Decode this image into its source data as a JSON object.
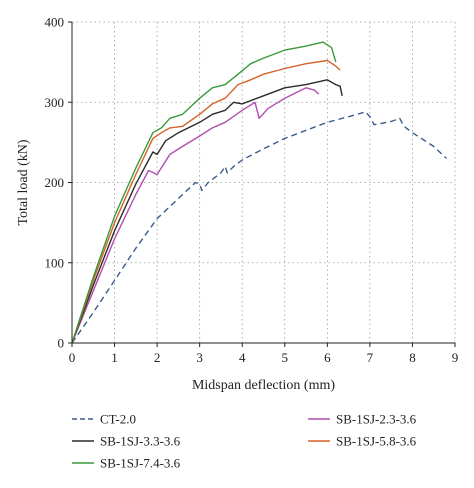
{
  "chart_data": {
    "type": "line",
    "title": "",
    "xlabel": "Midspan deflection (mm)",
    "ylabel": "Total load (kN)",
    "xlim": [
      0,
      9
    ],
    "ylim": [
      0,
      400
    ],
    "xticks": [
      0,
      1,
      2,
      3,
      4,
      5,
      6,
      7,
      8,
      9
    ],
    "yticks": [
      0,
      100,
      200,
      300,
      400
    ],
    "grid": true,
    "legend_position": "bottom",
    "series": [
      {
        "name": "CT-2.0",
        "color": "#3b5b8f",
        "dash": "dashed",
        "x": [
          0,
          0.5,
          1.0,
          1.5,
          2.0,
          2.5,
          2.9,
          3.0,
          3.05,
          3.2,
          3.5,
          3.6,
          3.65,
          3.8,
          4.0,
          4.5,
          5.0,
          5.5,
          6.0,
          6.5,
          6.9,
          7.0,
          7.1,
          7.5,
          7.7,
          7.8,
          8.0,
          8.5,
          8.8
        ],
        "y": [
          0,
          38,
          78,
          118,
          155,
          180,
          200,
          198,
          190,
          200,
          212,
          220,
          212,
          220,
          228,
          242,
          255,
          265,
          275,
          282,
          288,
          282,
          272,
          276,
          280,
          270,
          262,
          245,
          230
        ]
      },
      {
        "name": "SB-1SJ-2.3-3.6",
        "color": "#b14fae",
        "dash": "solid",
        "x": [
          0,
          0.5,
          1.0,
          1.5,
          1.8,
          2.0,
          2.3,
          2.6,
          3.0,
          3.3,
          3.6,
          4.0,
          4.3,
          4.4,
          4.6,
          5.0,
          5.5,
          5.7,
          5.8
        ],
        "y": [
          0,
          65,
          130,
          185,
          215,
          210,
          235,
          245,
          258,
          268,
          275,
          290,
          300,
          280,
          292,
          305,
          318,
          315,
          310
        ]
      },
      {
        "name": "SB-1SJ-3.3-3.6",
        "color": "#2b2b2b",
        "dash": "solid",
        "x": [
          0,
          0.5,
          1.0,
          1.5,
          1.9,
          2.0,
          2.2,
          2.5,
          3.0,
          3.3,
          3.6,
          3.8,
          4.0,
          4.5,
          5.0,
          5.5,
          6.0,
          6.2,
          6.3,
          6.35
        ],
        "y": [
          0,
          72,
          140,
          198,
          238,
          235,
          252,
          262,
          275,
          285,
          290,
          300,
          298,
          308,
          318,
          322,
          328,
          322,
          320,
          308
        ]
      },
      {
        "name": "SB-1SJ-5.8-3.6",
        "color": "#d4622a",
        "dash": "solid",
        "x": [
          0,
          0.5,
          1.0,
          1.5,
          1.9,
          2.1,
          2.3,
          2.6,
          3.0,
          3.3,
          3.6,
          3.9,
          4.2,
          4.5,
          5.0,
          5.5,
          6.0,
          6.2,
          6.3
        ],
        "y": [
          0,
          78,
          150,
          210,
          255,
          262,
          268,
          270,
          285,
          298,
          305,
          322,
          328,
          335,
          342,
          348,
          352,
          345,
          340
        ]
      },
      {
        "name": "SB-1SJ-7.4-3.6",
        "color": "#3a9a3a",
        "dash": "solid",
        "x": [
          0,
          0.5,
          1.0,
          1.5,
          1.9,
          2.1,
          2.3,
          2.6,
          3.0,
          3.3,
          3.6,
          3.9,
          4.2,
          4.5,
          5.0,
          5.5,
          5.9,
          6.1,
          6.2
        ],
        "y": [
          0,
          82,
          158,
          218,
          262,
          268,
          280,
          285,
          305,
          318,
          322,
          335,
          348,
          355,
          365,
          370,
          375,
          368,
          350
        ]
      }
    ]
  }
}
